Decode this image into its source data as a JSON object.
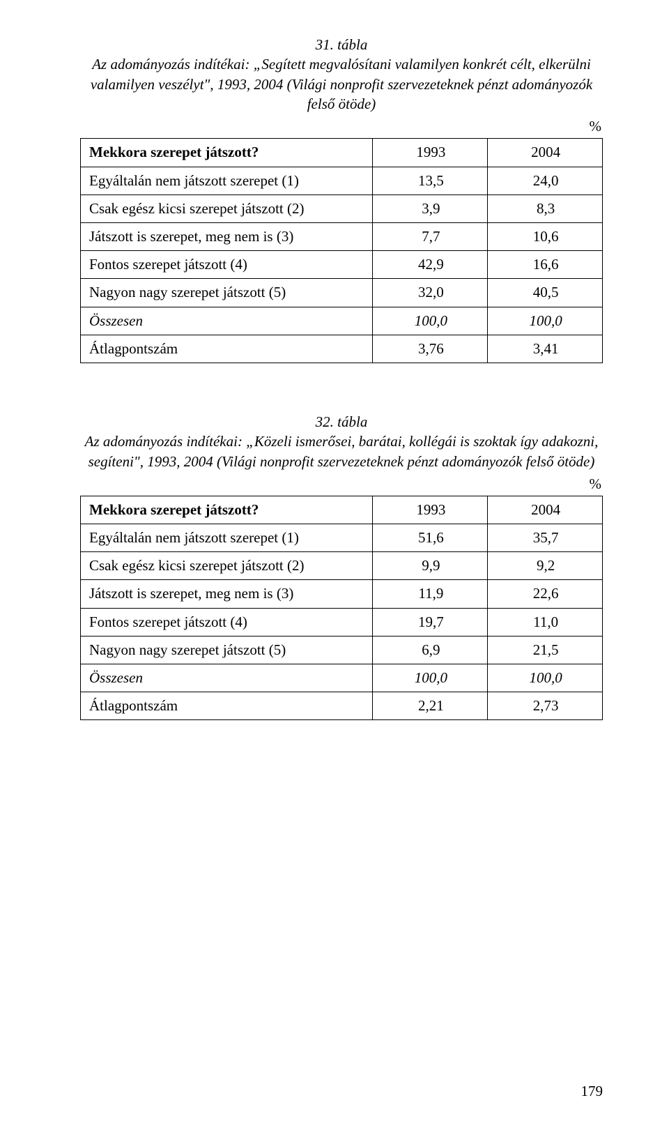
{
  "page_number": "179",
  "percent_symbol": "%",
  "border_color": "#000000",
  "text_color": "#000000",
  "background_color": "#ffffff",
  "tables": [
    {
      "number": "31. tábla",
      "caption": "Az adományozás indítékai: „Segített megvalósítani valamilyen konkrét célt, elkerülni valamilyen veszélyt\", 1993, 2004 (Világi nonprofit szervezeteknek pénzt adományozók felső ötöde)",
      "header_rowlabel": "Mekkora szerepet játszott?",
      "col1": "1993",
      "col2": "2004",
      "rows": [
        {
          "label": "Egyáltalán nem játszott szerepet (1)",
          "v1": "13,5",
          "v2": "24,0",
          "italic": false
        },
        {
          "label": "Csak egész kicsi szerepet játszott (2)",
          "v1": "3,9",
          "v2": "8,3",
          "italic": false
        },
        {
          "label": "Játszott is szerepet, meg nem is (3)",
          "v1": "7,7",
          "v2": "10,6",
          "italic": false
        },
        {
          "label": "Fontos szerepet játszott (4)",
          "v1": "42,9",
          "v2": "16,6",
          "italic": false
        },
        {
          "label": "Nagyon nagy szerepet játszott (5)",
          "v1": "32,0",
          "v2": "40,5",
          "italic": false
        },
        {
          "label": "Összesen",
          "v1": "100,0",
          "v2": "100,0",
          "italic": true
        },
        {
          "label": "Átlagpontszám",
          "v1": "3,76",
          "v2": "3,41",
          "italic": false
        }
      ]
    },
    {
      "number": "32. tábla",
      "caption": "Az adományozás indítékai: „Közeli ismerősei, barátai, kollégái is szoktak így adakozni, segíteni\", 1993, 2004 (Világi nonprofit szervezeteknek pénzt adományozók felső ötöde)",
      "header_rowlabel": "Mekkora szerepet játszott?",
      "col1": "1993",
      "col2": "2004",
      "rows": [
        {
          "label": "Egyáltalán nem játszott szerepet (1)",
          "v1": "51,6",
          "v2": "35,7",
          "italic": false
        },
        {
          "label": "Csak egész kicsi szerepet játszott (2)",
          "v1": "9,9",
          "v2": "9,2",
          "italic": false
        },
        {
          "label": "Játszott is szerepet, meg nem is (3)",
          "v1": "11,9",
          "v2": "22,6",
          "italic": false
        },
        {
          "label": "Fontos szerepet játszott (4)",
          "v1": "19,7",
          "v2": "11,0",
          "italic": false
        },
        {
          "label": "Nagyon nagy szerepet játszott (5)",
          "v1": "6,9",
          "v2": "21,5",
          "italic": false
        },
        {
          "label": "Összesen",
          "v1": "100,0",
          "v2": "100,0",
          "italic": true
        },
        {
          "label": "Átlagpontszám",
          "v1": "2,21",
          "v2": "2,73",
          "italic": false
        }
      ]
    }
  ]
}
